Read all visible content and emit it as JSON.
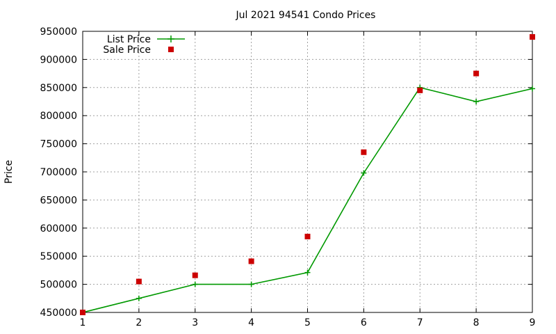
{
  "chart_data": {
    "type": "line",
    "title": "Jul 2021 94541 Condo Prices",
    "xlabel": "",
    "ylabel": "Price",
    "x": [
      1,
      2,
      3,
      4,
      5,
      6,
      7,
      8,
      9
    ],
    "xlim": [
      1,
      9
    ],
    "ylim": [
      450000,
      950000
    ],
    "xticks": [
      "1",
      "2",
      "3",
      "4",
      "5",
      "6",
      "7",
      "8",
      "9"
    ],
    "yticks": [
      "450000",
      "500000",
      "550000",
      "600000",
      "650000",
      "700000",
      "750000",
      "800000",
      "850000",
      "900000",
      "950000"
    ],
    "grid": true,
    "legend_position": "top-left",
    "series": [
      {
        "name": "List Price",
        "style": "linespoints",
        "marker": "plus",
        "color": "#009900",
        "values": [
          450000,
          475000,
          500000,
          500000,
          521000,
          698000,
          850000,
          825000,
          848000
        ]
      },
      {
        "name": "Sale Price",
        "style": "points",
        "marker": "square",
        "color": "#cc0000",
        "values": [
          450000,
          505000,
          516000,
          541000,
          585000,
          735000,
          845000,
          875000,
          940000
        ]
      }
    ]
  }
}
